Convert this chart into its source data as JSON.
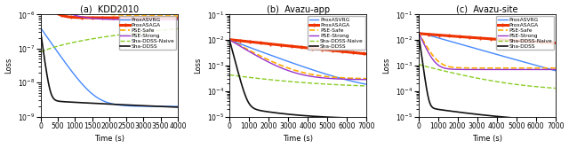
{
  "subplots": [
    {
      "title": "(a)  KDD2010",
      "xlabel": "Time (s)",
      "ylabel": "Loss",
      "xlim": [
        0,
        4000
      ],
      "ylim": [
        1e-09,
        1e-06
      ],
      "xticks": [
        0,
        500,
        1000,
        1500,
        2000,
        2500,
        3000,
        3500,
        4000
      ]
    },
    {
      "title": "(b)  Avazu-app",
      "xlabel": "Time (s)",
      "ylabel": "Loss",
      "xlim": [
        0,
        7000
      ],
      "ylim": [
        1e-05,
        0.1
      ],
      "xticks": [
        0,
        1000,
        2000,
        3000,
        4000,
        5000,
        6000,
        7000
      ]
    },
    {
      "title": "(c)  Avazu-site",
      "xlabel": "Time (s)",
      "ylabel": "Loss",
      "xlim": [
        0,
        7000
      ],
      "ylim": [
        1e-05,
        0.1
      ],
      "xticks": [
        0,
        1000,
        2000,
        3000,
        4000,
        5000,
        6000,
        7000
      ]
    }
  ],
  "legend_labels": [
    "ProxASVRG",
    "ProxASAGA",
    "PSE-Safe",
    "PSE-Strong",
    "Sha-DDSS-Naive",
    "Sha-DDSS"
  ],
  "series_styles": {
    "ProxASVRG": {
      "color": "#4488ff",
      "linestyle": "-",
      "linewidth": 1.0,
      "marker": null
    },
    "ProxASAGA": {
      "color": "#ee3300",
      "linestyle": "-",
      "linewidth": 2.2,
      "marker": "+"
    },
    "PSE-Safe": {
      "color": "#ffaa00",
      "linestyle": "--",
      "linewidth": 1.2,
      "marker": null
    },
    "PSE-Strong": {
      "color": "#9933cc",
      "linestyle": "-",
      "linewidth": 1.0,
      "marker": null
    },
    "Sha-DDSS-Naive": {
      "color": "#88cc22",
      "linestyle": "--",
      "linewidth": 1.0,
      "marker": null
    },
    "Sha-DDSS": {
      "color": "#111111",
      "linestyle": "-",
      "linewidth": 1.2,
      "marker": null
    }
  }
}
